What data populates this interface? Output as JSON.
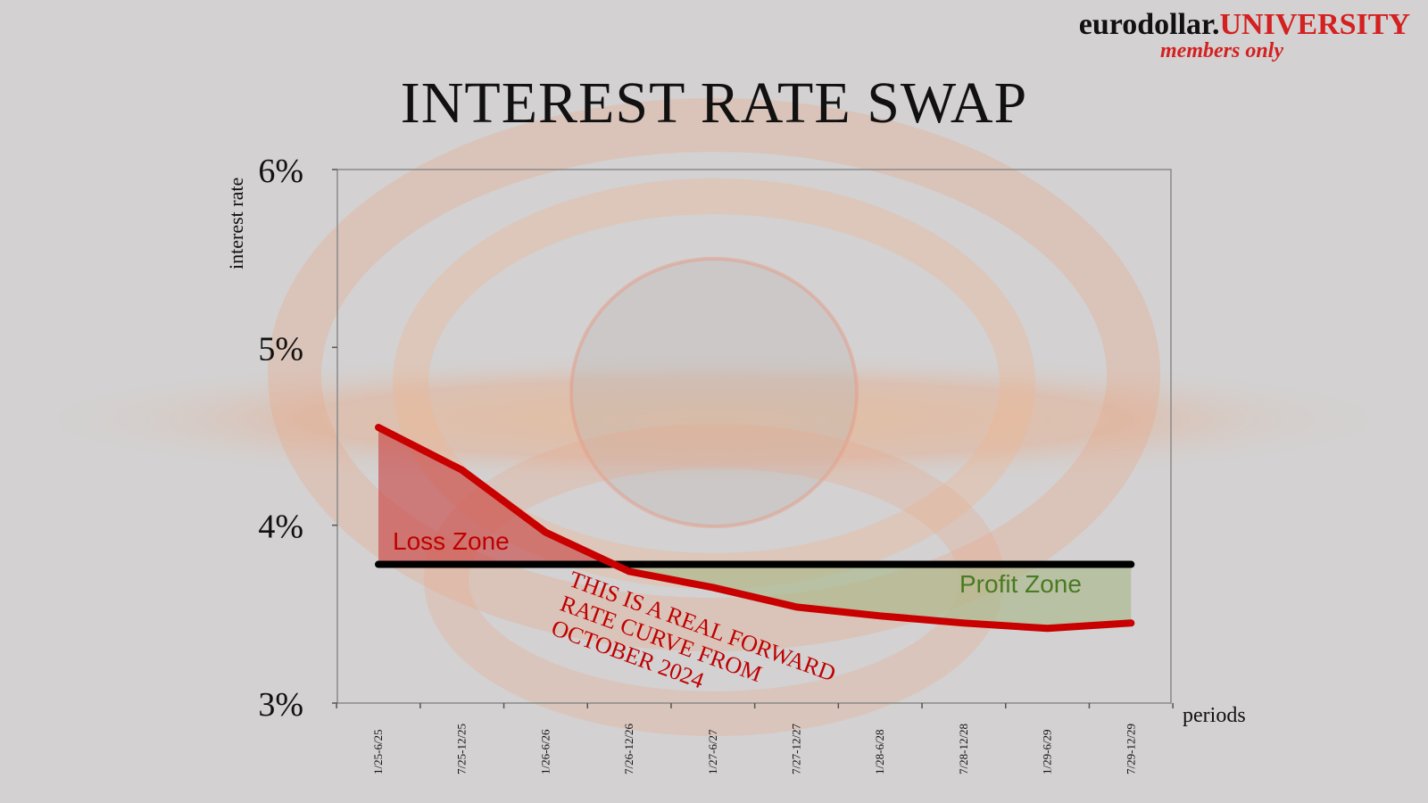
{
  "brand": {
    "name": "eurodollar.",
    "accent": "UNIVERSITY",
    "tagline": "members only"
  },
  "title": "INTEREST RATE SWAP",
  "colors": {
    "curve": "#c80000",
    "fixed_line": "#000000",
    "loss_fill": "#c84040",
    "profit_fill": "#a9b98a",
    "loss_text": "#c00000",
    "profit_text": "#4a7a22",
    "brand_accent": "#d42020"
  },
  "chart_data": {
    "type": "area",
    "title": "INTEREST RATE SWAP",
    "xlabel": "periods",
    "ylabel": "interest rate",
    "categories": [
      "1/25-6/25",
      "7/25-12/25",
      "1/26-6/26",
      "7/26-12/26",
      "1/27-6/27",
      "7/27-12/27",
      "1/28-6/28",
      "7/28-12/28",
      "1/29-6/29",
      "7/29-12/29"
    ],
    "yticks": [
      "3%",
      "4%",
      "5%",
      "6%"
    ],
    "ylim": [
      3,
      6
    ],
    "series": [
      {
        "values": [
          4.55,
          4.31,
          3.96,
          3.74,
          3.65,
          3.54,
          3.49,
          3.45,
          3.42,
          3.45
        ]
      },
      {
        "values": [
          3.78,
          3.78,
          3.78,
          3.78,
          3.78,
          3.78,
          3.78,
          3.78,
          3.78,
          3.78
        ]
      }
    ],
    "annotations": [
      {
        "text": "Loss Zone"
      },
      {
        "text": "Profit Zone"
      },
      {
        "text": "THIS IS A REAL FORWARD RATE CURVE FROM OCTOBER 2024",
        "lines": [
          "THIS IS A REAL FORWARD",
          "RATE CURVE FROM",
          "OCTOBER 2024"
        ]
      }
    ],
    "grid": false
  }
}
